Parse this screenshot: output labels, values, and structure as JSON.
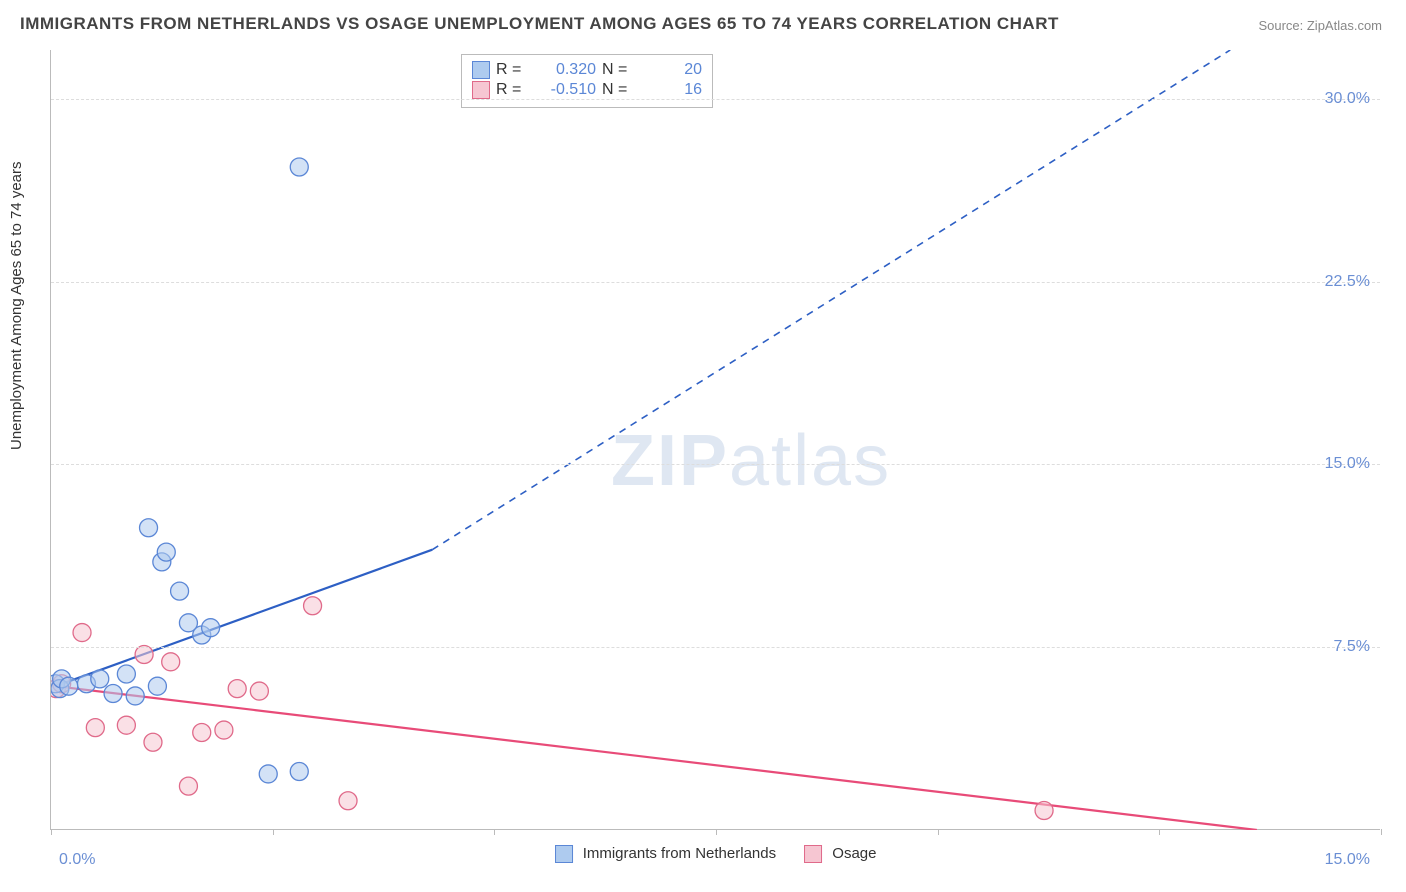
{
  "title": "IMMIGRANTS FROM NETHERLANDS VS OSAGE UNEMPLOYMENT AMONG AGES 65 TO 74 YEARS CORRELATION CHART",
  "source_label": "Source: ZipAtlas.com",
  "yaxis_label": "Unemployment Among Ages 65 to 74 years",
  "watermark_bold": "ZIP",
  "watermark_light": "atlas",
  "chart": {
    "type": "scatter",
    "xlim": [
      0,
      15
    ],
    "ylim": [
      0,
      32
    ],
    "x_tick_positions": [
      0,
      2.5,
      5.0,
      7.5,
      10.0,
      12.5,
      15.0
    ],
    "y_ticks": [
      {
        "v": 7.5,
        "label": "7.5%"
      },
      {
        "v": 15.0,
        "label": "15.0%"
      },
      {
        "v": 22.5,
        "label": "22.5%"
      },
      {
        "v": 30.0,
        "label": "30.0%"
      }
    ],
    "x_origin_label": "0.0%",
    "x_max_label": "15.0%",
    "grid_color": "#dddddd",
    "axis_color": "#bbbbbb",
    "tick_label_color": "#6b8fd4",
    "background_color": "#ffffff",
    "marker_radius": 9,
    "marker_radius_small": 7,
    "marker_opacity": 0.55,
    "line_width_solid": 2.2,
    "line_width_dash": 1.6,
    "dash_pattern": "7 6"
  },
  "series": {
    "blue": {
      "label": "Immigrants from Netherlands",
      "fill": "#aecbef",
      "stroke": "#5b87d6",
      "line_color": "#2d5fc4",
      "R": "0.320",
      "N": "20",
      "trend_solid": {
        "x1": 0.05,
        "y1": 5.9,
        "x2": 4.3,
        "y2": 11.5
      },
      "trend_dash": {
        "x1": 4.3,
        "y1": 11.5,
        "x2": 13.3,
        "y2": 32.0
      },
      "points": [
        {
          "x": 0.05,
          "y": 6.0
        },
        {
          "x": 0.1,
          "y": 5.8
        },
        {
          "x": 0.12,
          "y": 6.2
        },
        {
          "x": 0.2,
          "y": 5.9
        },
        {
          "x": 0.4,
          "y": 6.0
        },
        {
          "x": 0.55,
          "y": 6.2
        },
        {
          "x": 0.7,
          "y": 5.6
        },
        {
          "x": 0.85,
          "y": 6.4
        },
        {
          "x": 0.95,
          "y": 5.5
        },
        {
          "x": 1.1,
          "y": 12.4
        },
        {
          "x": 1.25,
          "y": 11.0
        },
        {
          "x": 1.3,
          "y": 11.4
        },
        {
          "x": 1.45,
          "y": 9.8
        },
        {
          "x": 1.55,
          "y": 8.5
        },
        {
          "x": 1.7,
          "y": 8.0
        },
        {
          "x": 1.8,
          "y": 8.3
        },
        {
          "x": 1.2,
          "y": 5.9
        },
        {
          "x": 2.45,
          "y": 2.3
        },
        {
          "x": 2.8,
          "y": 2.4
        },
        {
          "x": 2.8,
          "y": 27.2
        }
      ]
    },
    "pink": {
      "label": "Osage",
      "fill": "#f6c6d2",
      "stroke": "#e06a8a",
      "line_color": "#e84b78",
      "R": "-0.510",
      "N": "16",
      "trend_solid": {
        "x1": 0.05,
        "y1": 5.9,
        "x2": 13.6,
        "y2": 0.0
      },
      "points": [
        {
          "x": 0.06,
          "y": 5.8
        },
        {
          "x": 0.12,
          "y": 6.0
        },
        {
          "x": 0.35,
          "y": 8.1
        },
        {
          "x": 0.5,
          "y": 4.2
        },
        {
          "x": 0.85,
          "y": 4.3
        },
        {
          "x": 1.05,
          "y": 7.2
        },
        {
          "x": 1.15,
          "y": 3.6
        },
        {
          "x": 1.35,
          "y": 6.9
        },
        {
          "x": 1.55,
          "y": 1.8
        },
        {
          "x": 1.7,
          "y": 4.0
        },
        {
          "x": 1.95,
          "y": 4.1
        },
        {
          "x": 2.1,
          "y": 5.8
        },
        {
          "x": 2.35,
          "y": 5.7
        },
        {
          "x": 2.95,
          "y": 9.2
        },
        {
          "x": 3.35,
          "y": 1.2
        },
        {
          "x": 11.2,
          "y": 0.8
        }
      ]
    }
  },
  "stats_labels": {
    "R": "R  =",
    "N": "N  ="
  }
}
